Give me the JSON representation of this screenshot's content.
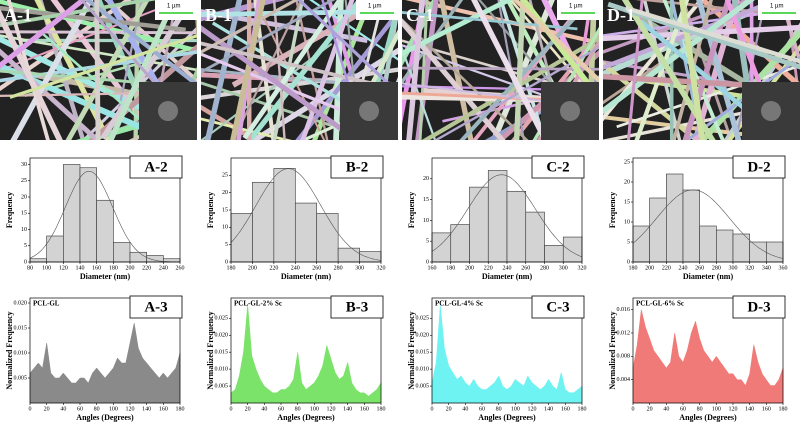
{
  "images": [
    {
      "label": "A-1",
      "scale_bar": "1 µm"
    },
    {
      "label": "B-1",
      "scale_bar": "1 µm"
    },
    {
      "label": "C-1",
      "scale_bar": "1 µm"
    },
    {
      "label": "D-1",
      "scale_bar": "1 µm"
    }
  ],
  "chart_data": [
    {
      "type": "histogram",
      "panel": "A-2",
      "x_label": "Diameter (nm)",
      "y_label": "Frequency",
      "color": "#d3d3d3",
      "bins": [
        80,
        100,
        120,
        140,
        160,
        180,
        200,
        220,
        240,
        260
      ],
      "values": [
        1,
        8,
        30,
        29,
        19,
        6,
        3,
        2,
        1
      ],
      "xlim": [
        80,
        260
      ],
      "xticks": [
        80,
        100,
        120,
        140,
        160,
        180,
        200,
        220,
        240,
        260
      ],
      "ylim": [
        0,
        32
      ],
      "yticks": [
        0,
        5,
        10,
        15,
        20,
        25,
        30
      ]
    },
    {
      "type": "histogram",
      "panel": "B-2",
      "x_label": "Diameter (nm)",
      "y_label": "Frequency",
      "color": "#d3d3d3",
      "bins": [
        180,
        200,
        220,
        240,
        260,
        280,
        300,
        320
      ],
      "values": [
        14,
        23,
        27,
        17,
        14,
        4,
        3
      ],
      "xlim": [
        180,
        320
      ],
      "xticks": [
        180,
        200,
        220,
        240,
        260,
        280,
        300,
        320
      ],
      "ylim": [
        0,
        30
      ],
      "yticks": [
        0,
        5,
        10,
        15,
        20,
        25
      ]
    },
    {
      "type": "histogram",
      "panel": "C-2",
      "x_label": "Diameter (nm)",
      "y_label": "Frequency",
      "color": "#d3d3d3",
      "bins": [
        160,
        180,
        200,
        220,
        240,
        260,
        280,
        300,
        320
      ],
      "values": [
        7,
        9,
        18,
        22,
        17,
        12,
        4,
        6
      ],
      "xlim": [
        160,
        320
      ],
      "xticks": [
        160,
        180,
        200,
        220,
        240,
        260,
        280,
        300,
        320
      ],
      "ylim": [
        0,
        25
      ],
      "yticks": [
        0,
        5,
        10,
        15,
        20
      ]
    },
    {
      "type": "histogram",
      "panel": "D-2",
      "x_label": "Diameter (nm)",
      "y_label": "Frequency",
      "color": "#d3d3d3",
      "bins": [
        180,
        200,
        220,
        240,
        260,
        280,
        300,
        320,
        340,
        360
      ],
      "values": [
        9,
        16,
        22,
        18,
        9,
        8,
        7,
        5,
        5
      ],
      "xlim": [
        180,
        360
      ],
      "xticks": [
        180,
        200,
        220,
        240,
        260,
        280,
        300,
        320,
        340,
        360
      ],
      "ylim": [
        0,
        26
      ],
      "yticks": [
        0,
        5,
        10,
        15,
        20,
        25
      ]
    },
    {
      "type": "area",
      "panel": "A-3",
      "title": "PCL-GL",
      "x_label": "Angles (Degrees)",
      "y_label": "Normalized Frequency",
      "color": "#8a8a8a",
      "x": [
        0,
        5,
        10,
        15,
        20,
        25,
        30,
        35,
        40,
        45,
        50,
        55,
        60,
        65,
        70,
        75,
        80,
        85,
        90,
        95,
        100,
        105,
        110,
        115,
        120,
        125,
        130,
        135,
        140,
        145,
        150,
        155,
        160,
        165,
        170,
        175,
        180
      ],
      "values": [
        0.006,
        0.007,
        0.008,
        0.007,
        0.012,
        0.006,
        0.005,
        0.005,
        0.006,
        0.005,
        0.004,
        0.004,
        0.005,
        0.005,
        0.004,
        0.006,
        0.007,
        0.006,
        0.005,
        0.006,
        0.007,
        0.009,
        0.008,
        0.008,
        0.012,
        0.016,
        0.011,
        0.009,
        0.008,
        0.007,
        0.006,
        0.005,
        0.006,
        0.005,
        0.006,
        0.007,
        0.01
      ],
      "xlim": [
        0,
        180
      ],
      "xticks": [
        0,
        20,
        40,
        60,
        80,
        100,
        120,
        140,
        160,
        180
      ],
      "ylim": [
        0,
        0.021
      ],
      "yticks": [
        0.005,
        {
          "value": 0.01,
          "label": "0.010"
        },
        0.015,
        {
          "value": 0.02,
          "label": "0.020"
        }
      ]
    },
    {
      "type": "area",
      "panel": "B-3",
      "title": "PCL-GL-2% Sc",
      "x_label": "Angles (Degrees)",
      "y_label": "Normalized Frequency",
      "color": "#7be36a",
      "x": [
        0,
        5,
        10,
        15,
        20,
        25,
        30,
        35,
        40,
        45,
        50,
        55,
        60,
        65,
        70,
        75,
        80,
        85,
        90,
        95,
        100,
        105,
        110,
        115,
        120,
        125,
        130,
        135,
        140,
        145,
        150,
        155,
        160,
        165,
        170,
        175,
        180
      ],
      "values": [
        0.003,
        0.004,
        0.008,
        0.015,
        0.029,
        0.014,
        0.01,
        0.007,
        0.005,
        0.004,
        0.003,
        0.003,
        0.004,
        0.004,
        0.005,
        0.007,
        0.015,
        0.006,
        0.004,
        0.005,
        0.006,
        0.008,
        0.011,
        0.017,
        0.013,
        0.009,
        0.007,
        0.008,
        0.012,
        0.006,
        0.004,
        0.003,
        0.003,
        0.002,
        0.003,
        0.004,
        0.006
      ],
      "xlim": [
        0,
        180
      ],
      "xticks": [
        0,
        20,
        40,
        60,
        80,
        100,
        120,
        140,
        160,
        180
      ],
      "ylim": [
        0,
        0.031
      ],
      "yticks": [
        0.005,
        {
          "value": 0.01,
          "label": "0.010"
        },
        0.015,
        {
          "value": 0.02,
          "label": "0.020"
        },
        0.025
      ]
    },
    {
      "type": "area",
      "panel": "C-3",
      "title": "PCL-GL-4% Sc",
      "x_label": "Angles (Degrees)",
      "y_label": "Normalized Frequency",
      "color": "#6ff2f2",
      "x": [
        0,
        5,
        10,
        15,
        20,
        25,
        30,
        35,
        40,
        45,
        50,
        55,
        60,
        65,
        70,
        75,
        80,
        85,
        90,
        95,
        100,
        105,
        110,
        115,
        120,
        125,
        130,
        135,
        140,
        145,
        150,
        155,
        160,
        165,
        170,
        175,
        180
      ],
      "values": [
        0.006,
        0.012,
        0.029,
        0.016,
        0.011,
        0.009,
        0.007,
        0.008,
        0.006,
        0.005,
        0.007,
        0.005,
        0.004,
        0.004,
        0.005,
        0.006,
        0.008,
        0.005,
        0.004,
        0.005,
        0.007,
        0.006,
        0.005,
        0.008,
        0.006,
        0.005,
        0.004,
        0.005,
        0.007,
        0.005,
        0.004,
        0.009,
        0.004,
        0.003,
        0.003,
        0.004,
        0.005
      ],
      "xlim": [
        0,
        180
      ],
      "xticks": [
        0,
        20,
        40,
        60,
        80,
        100,
        120,
        140,
        160,
        180
      ],
      "ylim": [
        0,
        0.031
      ],
      "yticks": [
        0.005,
        {
          "value": 0.01,
          "label": "0.010"
        },
        0.015,
        {
          "value": 0.02,
          "label": "0.020"
        },
        0.025
      ]
    },
    {
      "type": "area",
      "panel": "D-3",
      "title": "PCL-GL-6% Sc",
      "x_label": "Angles (Degrees)",
      "y_label": "Normalized Frequency",
      "color": "#f07a78",
      "x": [
        0,
        5,
        10,
        15,
        20,
        25,
        30,
        35,
        40,
        45,
        50,
        55,
        60,
        65,
        70,
        75,
        80,
        85,
        90,
        95,
        100,
        105,
        110,
        115,
        120,
        125,
        130,
        135,
        140,
        145,
        150,
        155,
        160,
        165,
        170,
        175,
        180
      ],
      "values": [
        0.006,
        0.01,
        0.016,
        0.013,
        0.011,
        0.009,
        0.008,
        0.007,
        0.006,
        0.007,
        0.012,
        0.008,
        0.007,
        0.009,
        0.012,
        0.014,
        0.011,
        0.009,
        0.008,
        0.007,
        0.008,
        0.007,
        0.006,
        0.005,
        0.005,
        0.004,
        0.004,
        0.003,
        0.005,
        0.01,
        0.007,
        0.005,
        0.004,
        0.003,
        0.003,
        0.004,
        0.006
      ],
      "xlim": [
        0,
        180
      ],
      "xticks": [
        0,
        20,
        40,
        60,
        80,
        100,
        120,
        140,
        160,
        180
      ],
      "ylim": [
        0,
        0.018
      ],
      "yticks": [
        0.004,
        0.008,
        0.012,
        0.016
      ]
    }
  ]
}
